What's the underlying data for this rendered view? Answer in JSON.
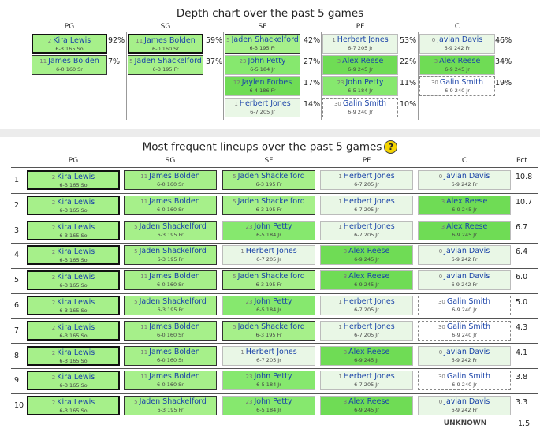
{
  "depth": {
    "title": "Depth chart over the past 5 games",
    "columns": [
      {
        "pos": "PG",
        "players": [
          {
            "num": "2",
            "name": "Kira Lewis",
            "info": "6-3 165 So",
            "pct": "92%",
            "fill": "g2",
            "border": "thick"
          },
          {
            "num": "11",
            "name": "James Bolden",
            "info": "6-0 160 Sr",
            "pct": "7%",
            "fill": "g2",
            "border": "med"
          }
        ]
      },
      {
        "pos": "SG",
        "players": [
          {
            "num": "11",
            "name": "James Bolden",
            "info": "6-0 160 Sr",
            "pct": "59%",
            "fill": "g2",
            "border": "thick"
          },
          {
            "num": "5",
            "name": "Jaden Shackelford",
            "info": "6-3 195 Fr",
            "pct": "37%",
            "fill": "g2",
            "border": "med"
          }
        ]
      },
      {
        "pos": "SF",
        "players": [
          {
            "num": "5",
            "name": "Jaden Shackelford",
            "info": "6-3 195 Fr",
            "pct": "42%",
            "fill": "g2",
            "border": "med"
          },
          {
            "num": "23",
            "name": "John Petty",
            "info": "6-5 184 Jr",
            "pct": "27%",
            "fill": "g1",
            "border": "thin"
          },
          {
            "num": "12",
            "name": "Jaylen Forbes",
            "info": "6-4 186 Fr",
            "pct": "17%",
            "fill": "g3",
            "border": "thin"
          },
          {
            "num": "1",
            "name": "Herbert Jones",
            "info": "6-7 205 Jr",
            "pct": "14%",
            "fill": "g4",
            "border": "thin"
          }
        ]
      },
      {
        "pos": "PF",
        "players": [
          {
            "num": "1",
            "name": "Herbert Jones",
            "info": "6-7 205 Jr",
            "pct": "53%",
            "fill": "g4",
            "border": "thin"
          },
          {
            "num": "3",
            "name": "Alex Reese",
            "info": "6-9 245 Jr",
            "pct": "22%",
            "fill": "g3",
            "border": "thin"
          },
          {
            "num": "23",
            "name": "John Petty",
            "info": "6-5 184 Jr",
            "pct": "11%",
            "fill": "g1",
            "border": "thin"
          },
          {
            "num": "30",
            "name": "Galin Smith",
            "info": "6-9 240 Jr",
            "pct": "10%",
            "fill": "g5",
            "border": "dashed"
          }
        ]
      },
      {
        "pos": "C",
        "players": [
          {
            "num": "0",
            "name": "Javian Davis",
            "info": "6-9 242 Fr",
            "pct": "46%",
            "fill": "g4",
            "border": "thin"
          },
          {
            "num": "3",
            "name": "Alex Reese",
            "info": "6-9 245 Jr",
            "pct": "34%",
            "fill": "g3",
            "border": "thin"
          },
          {
            "num": "30",
            "name": "Galin Smith",
            "info": "6-9 240 Jr",
            "pct": "19%",
            "fill": "g5",
            "border": "dashed"
          }
        ]
      }
    ]
  },
  "lineups": {
    "title": "Most frequent lineups over the past 5 games",
    "help_label": "?",
    "headers": [
      "PG",
      "SG",
      "SF",
      "PF",
      "C"
    ],
    "pct_header": "Pct",
    "rows": [
      {
        "rank": "1",
        "pct": "10.8",
        "players": [
          "Kira Lewis",
          "James Bolden",
          "Jaden Shackelford",
          "Herbert Jones",
          "Javian Davis"
        ]
      },
      {
        "rank": "2",
        "pct": "10.7",
        "players": [
          "Kira Lewis",
          "James Bolden",
          "Jaden Shackelford",
          "Herbert Jones",
          "Alex Reese"
        ]
      },
      {
        "rank": "3",
        "pct": "6.7",
        "players": [
          "Kira Lewis",
          "Jaden Shackelford",
          "John Petty",
          "Herbert Jones",
          "Alex Reese"
        ]
      },
      {
        "rank": "4",
        "pct": "6.4",
        "players": [
          "Kira Lewis",
          "Jaden Shackelford",
          "Herbert Jones",
          "Alex Reese",
          "Javian Davis"
        ]
      },
      {
        "rank": "5",
        "pct": "6.0",
        "players": [
          "Kira Lewis",
          "James Bolden",
          "Jaden Shackelford",
          "Alex Reese",
          "Javian Davis"
        ]
      },
      {
        "rank": "6",
        "pct": "5.0",
        "players": [
          "Kira Lewis",
          "Jaden Shackelford",
          "John Petty",
          "Herbert Jones",
          "Galin Smith"
        ]
      },
      {
        "rank": "7",
        "pct": "4.3",
        "players": [
          "Kira Lewis",
          "James Bolden",
          "Jaden Shackelford",
          "Herbert Jones",
          "Galin Smith"
        ]
      },
      {
        "rank": "8",
        "pct": "4.1",
        "players": [
          "Kira Lewis",
          "James Bolden",
          "Herbert Jones",
          "Alex Reese",
          "Javian Davis"
        ]
      },
      {
        "rank": "9",
        "pct": "3.8",
        "players": [
          "Kira Lewis",
          "James Bolden",
          "John Petty",
          "Herbert Jones",
          "Galin Smith"
        ]
      },
      {
        "rank": "10",
        "pct": "3.3",
        "players": [
          "Kira Lewis",
          "Jaden Shackelford",
          "John Petty",
          "Alex Reese",
          "Javian Davis"
        ]
      }
    ],
    "unknown_label": "UNKNOWN",
    "unknown_pct": "1.5"
  },
  "players": {
    "Kira Lewis": {
      "num": "2",
      "info": "6-3 165 So"
    },
    "James Bolden": {
      "num": "11",
      "info": "6-0 160 Sr"
    },
    "Jaden Shackelford": {
      "num": "5",
      "info": "6-3 195 Fr"
    },
    "John Petty": {
      "num": "23",
      "info": "6-5 184 Jr"
    },
    "Herbert Jones": {
      "num": "1",
      "info": "6-7 205 Jr"
    },
    "Alex Reese": {
      "num": "3",
      "info": "6-9 245 Jr"
    },
    "Javian Davis": {
      "num": "0",
      "info": "6-9 242 Fr"
    },
    "Galin Smith": {
      "num": "30",
      "info": "6-9 240 Jr"
    },
    "Jaylen Forbes": {
      "num": "12",
      "info": "6-4 186 Fr"
    }
  },
  "colors": {
    "g1": "#86e86e",
    "g2": "#a6f08a",
    "g3": "#6fdc55",
    "g4": "#e9f7e6",
    "g5": "#ffffff",
    "link": "#1a43a8"
  }
}
